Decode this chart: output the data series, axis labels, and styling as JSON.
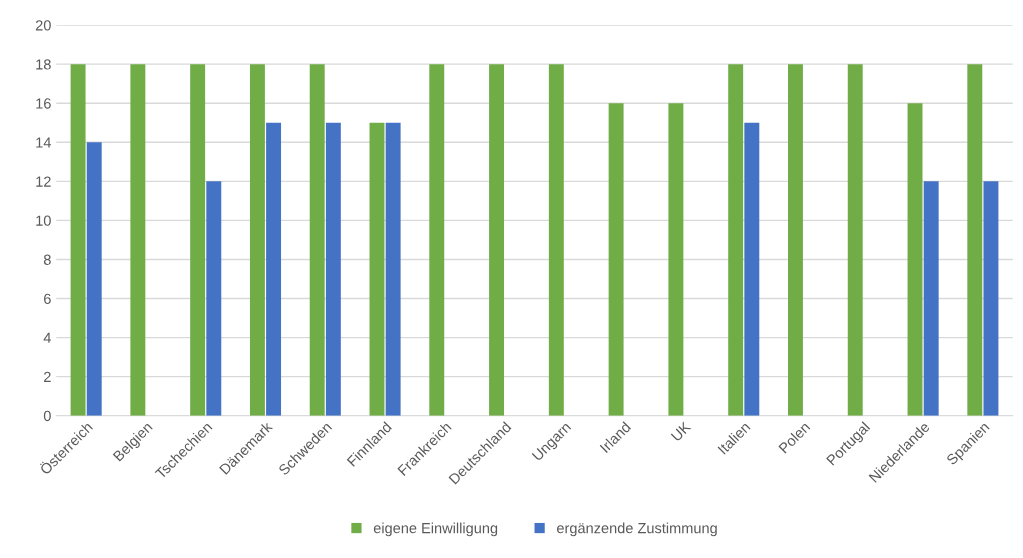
{
  "chart_data": {
    "type": "bar",
    "categories": [
      "Österreich",
      "Belgien",
      "Tschechien",
      "Dänemark",
      "Schweden",
      "Finnland",
      "Frankreich",
      "Deutschland",
      "Ungarn",
      "Irland",
      "UK",
      "Italien",
      "Polen",
      "Portugal",
      "Niederlande",
      "Spanien"
    ],
    "series": [
      {
        "name": "eigene Einwilligung",
        "color": "#70ad47",
        "values": [
          18,
          18,
          18,
          18,
          18,
          15,
          18,
          18,
          18,
          16,
          16,
          18,
          18,
          18,
          16,
          18
        ]
      },
      {
        "name": "ergänzende Zustimmung",
        "color": "#4472c4",
        "values": [
          14,
          null,
          12,
          15,
          15,
          15,
          null,
          null,
          null,
          null,
          null,
          15,
          null,
          null,
          12,
          12
        ]
      }
    ],
    "ylim": [
      0,
      20
    ],
    "yticks": [
      0,
      2,
      4,
      6,
      8,
      10,
      12,
      14,
      16,
      18,
      20
    ],
    "grid": "y",
    "legend": "bottom"
  }
}
